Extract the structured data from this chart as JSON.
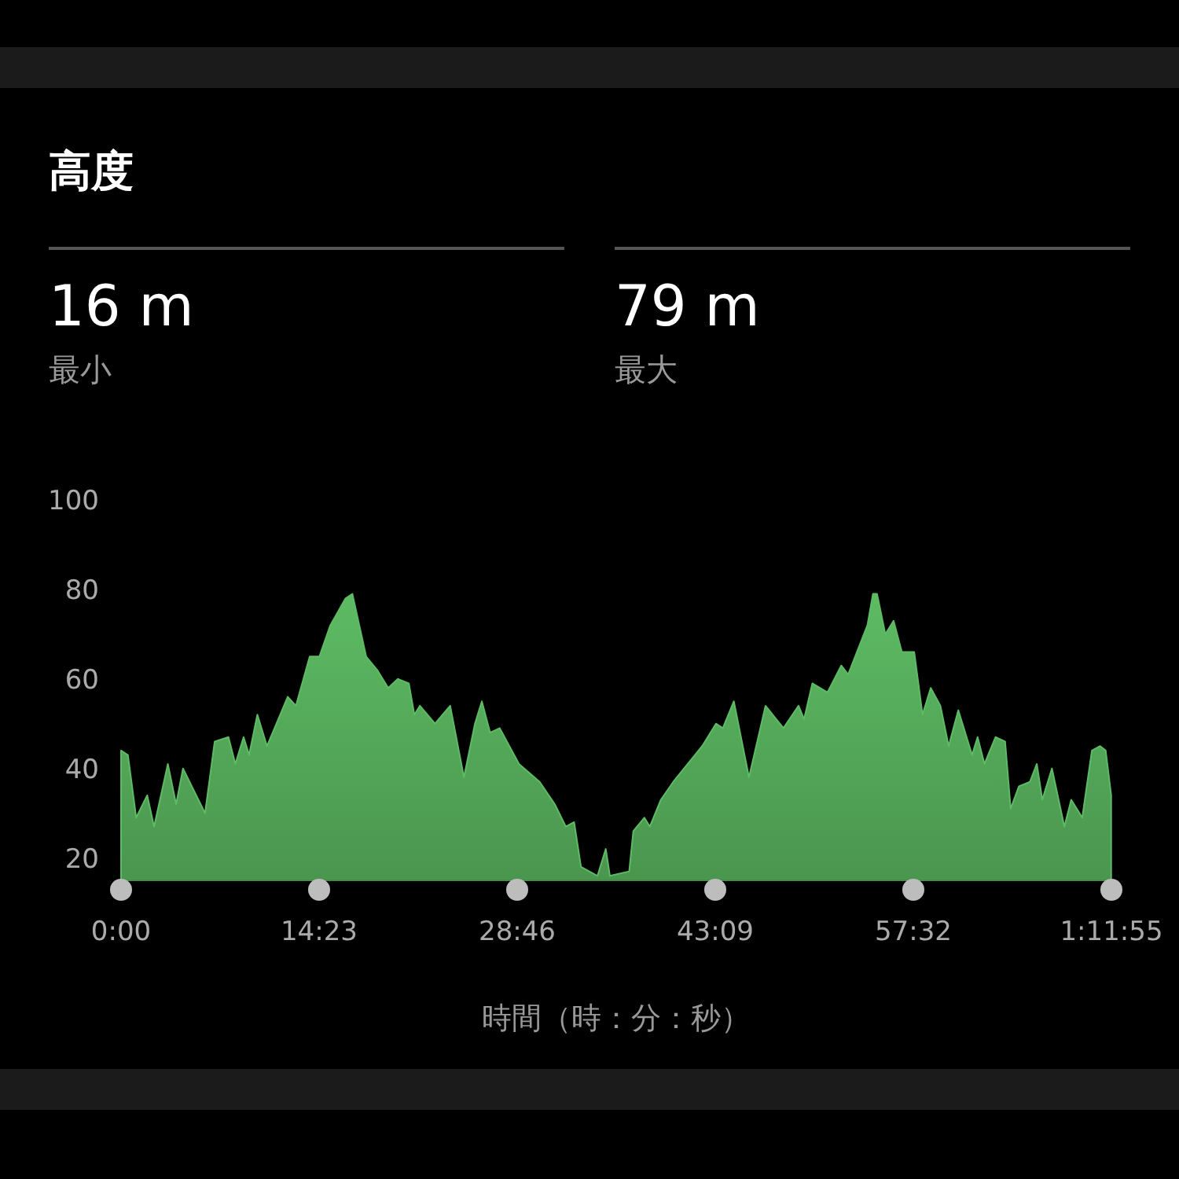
{
  "chart_data": {
    "type": "area",
    "title": "高度",
    "xlabel": "時間（時：分：秒）",
    "annotations": [
      "16 m",
      "最小",
      "79 m",
      "最大"
    ],
    "series": [
      {
        "color": "#5dbb63",
        "x": [
          0,
          0.5,
          1.1,
          1.9,
          2.4,
          3.4,
          4.0,
          4.5,
          6.1,
          6.8,
          7.8,
          8.3,
          8.9,
          9.3,
          9.9,
          10.6,
          12.1,
          12.7,
          13.7,
          14.4,
          15.2,
          16.3,
          16.8,
          17.8,
          18.6,
          19.4,
          20.1,
          20.9,
          21.3,
          21.7,
          22.8,
          23.9,
          24.9,
          25.7,
          26.2,
          26.8,
          27.5,
          28.9,
          30.4,
          31.5,
          32.3,
          32.9,
          33.4,
          34.6,
          35.2,
          35.5,
          36.9,
          37.2,
          38.0,
          38.4,
          39.2,
          40.1,
          42.2,
          43.2,
          43.7,
          44.5,
          45.6,
          46.8,
          48.1,
          49.2,
          49.6,
          50.2,
          51.3,
          52.3,
          52.8,
          54.2,
          54.6,
          54.9,
          55.5,
          56.1,
          56.7,
          57.6,
          58.2,
          58.8,
          59.5,
          60.1,
          60.8,
          61.8,
          62.2,
          62.7,
          63.5,
          64.2,
          64.6,
          65.2,
          66.0,
          66.5,
          66.9,
          67.6,
          68.5,
          69.0,
          69.8,
          70.5,
          71.1,
          71.5,
          71.9
        ],
        "values": [
          44,
          43,
          29,
          34,
          27,
          41,
          32,
          40,
          30,
          46,
          47,
          41,
          47,
          43,
          52,
          45,
          56,
          54,
          65,
          65,
          72,
          78,
          79,
          65,
          62,
          58,
          60,
          59,
          52,
          54,
          50,
          54,
          38,
          50,
          55,
          48,
          49,
          41,
          37,
          32,
          27,
          28,
          18,
          16,
          22,
          16,
          17,
          26,
          29,
          27,
          33,
          37,
          45,
          50,
          49,
          55,
          38,
          54,
          49,
          54,
          51,
          59,
          57,
          63,
          61,
          72,
          79,
          79,
          70,
          73,
          66,
          66,
          52,
          58,
          54,
          45,
          53,
          43,
          47,
          41,
          47,
          46,
          31,
          36,
          37,
          41,
          33,
          40,
          27,
          33,
          29,
          44,
          45,
          44,
          34
        ]
      }
    ],
    "xlim": [
      0,
      71.917
    ],
    "ylim": [
      15,
      100
    ],
    "xticks": [
      {
        "value": 0,
        "label": "0:00"
      },
      {
        "value": 14.383,
        "label": "14:23"
      },
      {
        "value": 28.767,
        "label": "28:46"
      },
      {
        "value": 43.15,
        "label": "43:09"
      },
      {
        "value": 57.533,
        "label": "57:32"
      },
      {
        "value": 71.917,
        "label": "1:11:55"
      }
    ],
    "yticks": [
      20,
      40,
      60,
      80,
      100
    ],
    "grid": false
  }
}
